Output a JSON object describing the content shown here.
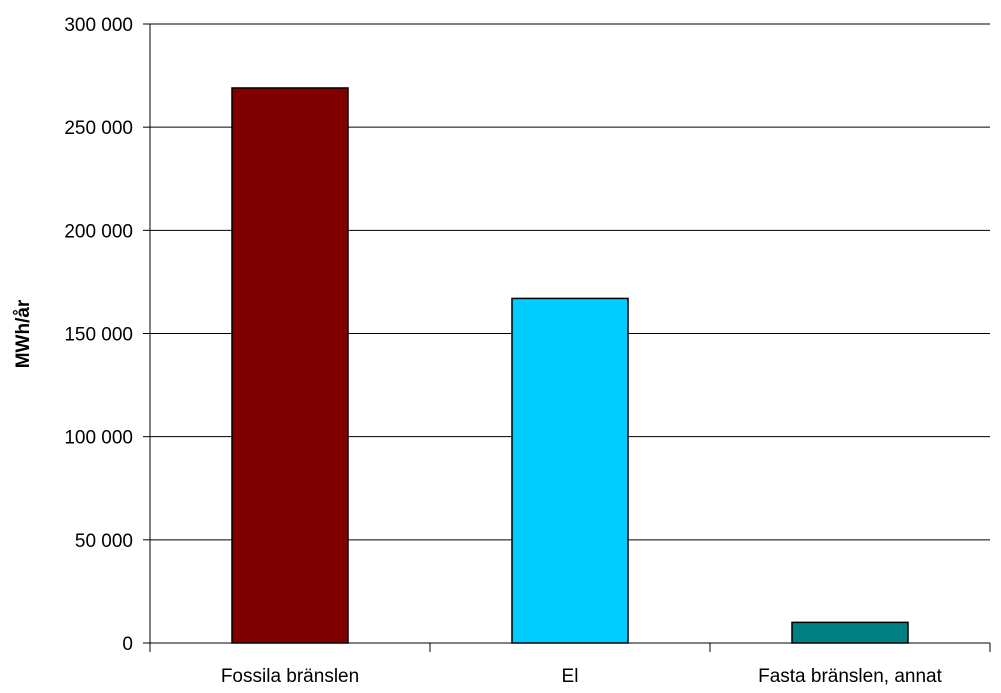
{
  "chart_data": {
    "type": "bar",
    "title": "",
    "xlabel": "",
    "ylabel": "MWh/år",
    "ylim": [
      0,
      300000
    ],
    "y_ticks": [
      0,
      50000,
      100000,
      150000,
      200000,
      250000,
      300000
    ],
    "y_tick_labels": [
      "0",
      "50 000",
      "100 000",
      "150 000",
      "200 000",
      "250 000",
      "300 000"
    ],
    "categories": [
      "Fossila bränslen",
      "El",
      "Fasta bränslen, annat"
    ],
    "values": [
      269000,
      167000,
      10000
    ],
    "bar_colors": [
      "#800000",
      "#00CCFF",
      "#008080"
    ],
    "grid": true,
    "legend": false
  }
}
